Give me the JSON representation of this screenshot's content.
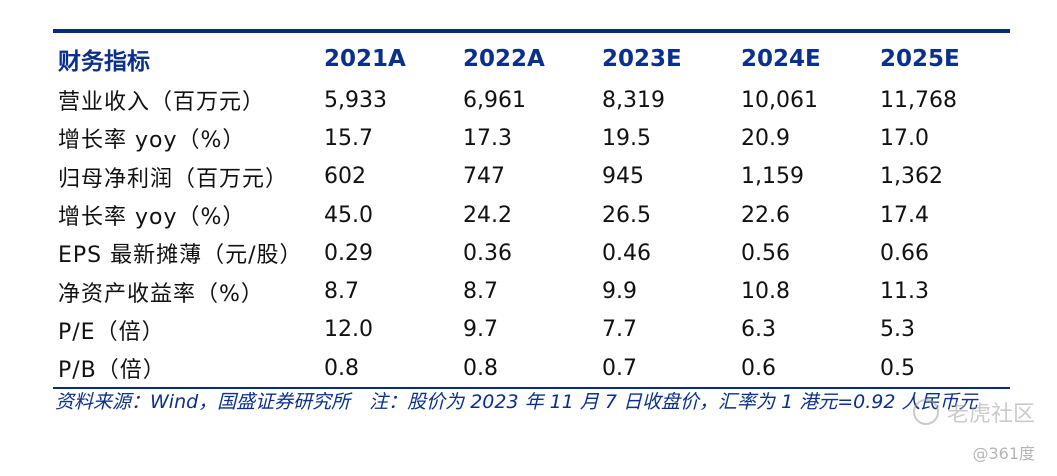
{
  "table": {
    "headers": [
      "财务指标",
      "2021A",
      "2022A",
      "2023E",
      "2024E",
      "2025E"
    ],
    "rows": [
      [
        "营业收入（百万元）",
        "5,933",
        "6,961",
        "8,319",
        "10,061",
        "11,768"
      ],
      [
        "增长率 yoy（%）",
        "15.7",
        "17.3",
        "19.5",
        "20.9",
        "17.0"
      ],
      [
        "归母净利润（百万元）",
        "602",
        "747",
        "945",
        "1,159",
        "1,362"
      ],
      [
        "增长率 yoy（%）",
        "45.0",
        "24.2",
        "26.5",
        "22.6",
        "17.4"
      ],
      [
        "EPS 最新摊薄（元/股）",
        "0.29",
        "0.36",
        "0.46",
        "0.56",
        "0.66"
      ],
      [
        "净资产收益率（%）",
        "8.7",
        "8.7",
        "9.9",
        "10.8",
        "11.3"
      ],
      [
        "P/E（倍）",
        "12.0",
        "9.7",
        "7.7",
        "6.3",
        "5.3"
      ],
      [
        "P/B（倍）",
        "0.8",
        "0.8",
        "0.7",
        "0.6",
        "0.5"
      ]
    ]
  },
  "note": "资料来源：Wind，国盛证券研究所　注：股价为 2023 年 11 月 7 日收盘价，汇率为 1 港元=0.92 人民币元",
  "watermark": {
    "brand": "老虎社区",
    "source": "@361度"
  },
  "colors": {
    "header_text": "#0b2f8c",
    "rule": "#0a2a7a",
    "body_text": "#111111"
  }
}
